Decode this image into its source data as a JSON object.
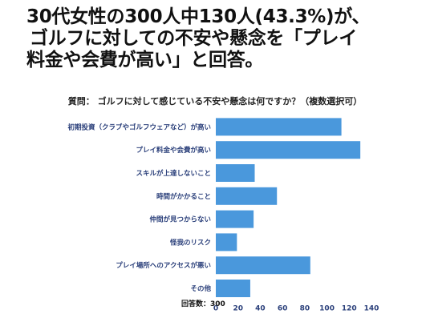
{
  "headline": {
    "line1": "30代女性の300人中130人(43.3%)が、",
    "line2": "ゴルフに対しての不安や懸念を「プレイ",
    "line3": "料金や会費が高い」と回答。"
  },
  "question": "質問： ゴルフに対して感じている不安や懸念は何ですか？（複数選択可）",
  "footnote": "回答数：300",
  "chart_data": {
    "type": "bar",
    "orientation": "horizontal",
    "title": "質問： ゴルフに対して感じている不安や懸念は何ですか？（複数選択可）",
    "categories": [
      "初期投資（クラブやゴルフウェアなど）が高い",
      "プレイ料金や会費が高い",
      "スキルが上達しないこと",
      "時間がかかること",
      "仲間が見つからない",
      "怪我のリスク",
      "プレイ場所へのアクセスが悪い",
      "その他"
    ],
    "values": [
      113,
      130,
      35,
      55,
      34,
      19,
      85,
      31
    ],
    "xlim": [
      0,
      140
    ],
    "xticks": [
      0,
      20,
      40,
      60,
      80,
      100,
      120,
      140
    ],
    "bar_color": "#4a98dc",
    "grid": false
  }
}
